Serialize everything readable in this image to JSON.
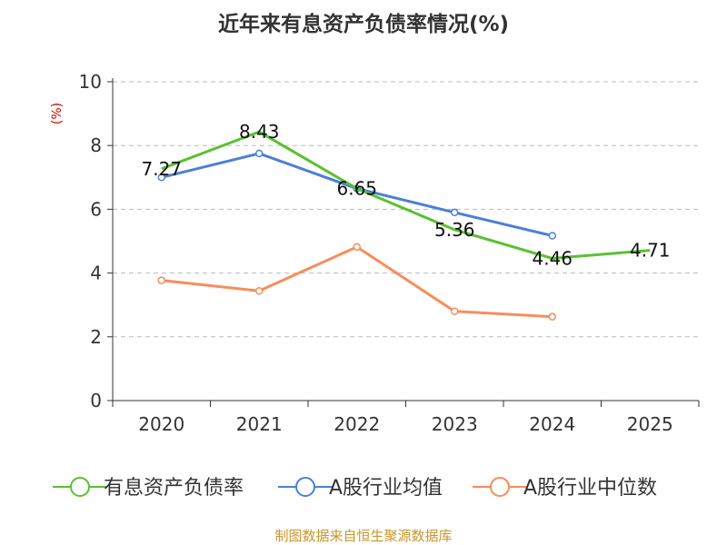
{
  "chart_data": {
    "type": "line",
    "title": "近年来有息资产负债率情况(%)",
    "ylabel": "(%)",
    "xlabel": "",
    "categories": [
      "2020",
      "2021",
      "2022",
      "2023",
      "2024",
      "2025"
    ],
    "ylim": [
      0,
      10
    ],
    "yticks": [
      0,
      2,
      4,
      6,
      8,
      10
    ],
    "grid": true,
    "legend_position": "bottom",
    "series": [
      {
        "name": "有息资产负债率",
        "color": "#5ac12e",
        "values": [
          7.27,
          8.43,
          6.65,
          5.36,
          4.46,
          4.71
        ],
        "labels": [
          "7.27",
          "8.43",
          "6.65",
          "5.36",
          "4.46",
          "4.71"
        ]
      },
      {
        "name": "A股行业均值",
        "color": "#4a7fd8",
        "values": [
          7.0,
          7.75,
          6.65,
          5.9,
          5.17,
          null
        ]
      },
      {
        "name": "A股行业中位数",
        "color": "#f98c5a",
        "values": [
          3.77,
          3.44,
          4.82,
          2.8,
          2.63,
          null
        ]
      }
    ]
  },
  "colors": {
    "ylabel": "#cc0000",
    "source": "#c8962a",
    "axis": "#333333",
    "grid": "#bbbbbb"
  },
  "source": "制图数据来自恒生聚源数据库"
}
